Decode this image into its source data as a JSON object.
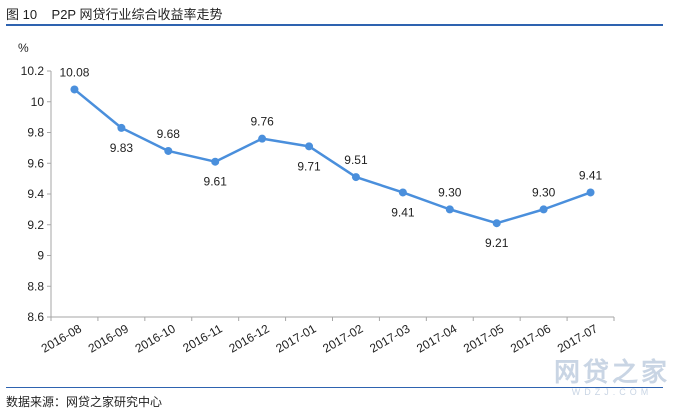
{
  "figure": {
    "title": "图 10    P2P 网贷行业综合收益率走势",
    "source": "数据来源：网贷之家研究中心",
    "watermark": {
      "main": "网贷之家",
      "sub": "WDZJ.COM"
    }
  },
  "chart_data": {
    "type": "line",
    "title": "",
    "xlabel": "",
    "ylabel": "%",
    "ylim": [
      8.6,
      10.2
    ],
    "yticks": [
      8.6,
      8.8,
      9,
      9.2,
      9.4,
      9.6,
      9.8,
      10,
      10.2
    ],
    "ytick_labels": [
      "8.6",
      "8.8",
      "9",
      "9.2",
      "9.4",
      "9.6",
      "9.8",
      "10",
      "10.2"
    ],
    "grid": false,
    "categories": [
      "2016-08",
      "2016-09",
      "2016-10",
      "2016-11",
      "2016-12",
      "2017-01",
      "2017-02",
      "2017-03",
      "2017-04",
      "2017-05",
      "2017-06",
      "2017-07"
    ],
    "series": [
      {
        "values": [
          10.08,
          9.83,
          9.68,
          9.61,
          9.76,
          9.71,
          9.51,
          9.41,
          9.3,
          9.21,
          9.3,
          9.41
        ],
        "labels": [
          "10.08",
          "9.83",
          "9.68",
          "9.61",
          "9.76",
          "9.71",
          "9.51",
          "9.41",
          "9.30",
          "9.21",
          "9.30",
          "9.41"
        ],
        "label_positions": [
          "above",
          "below",
          "above",
          "below",
          "above",
          "below",
          "above",
          "below",
          "above",
          "below",
          "above",
          "above"
        ],
        "color": "#4a8fdc"
      }
    ]
  }
}
